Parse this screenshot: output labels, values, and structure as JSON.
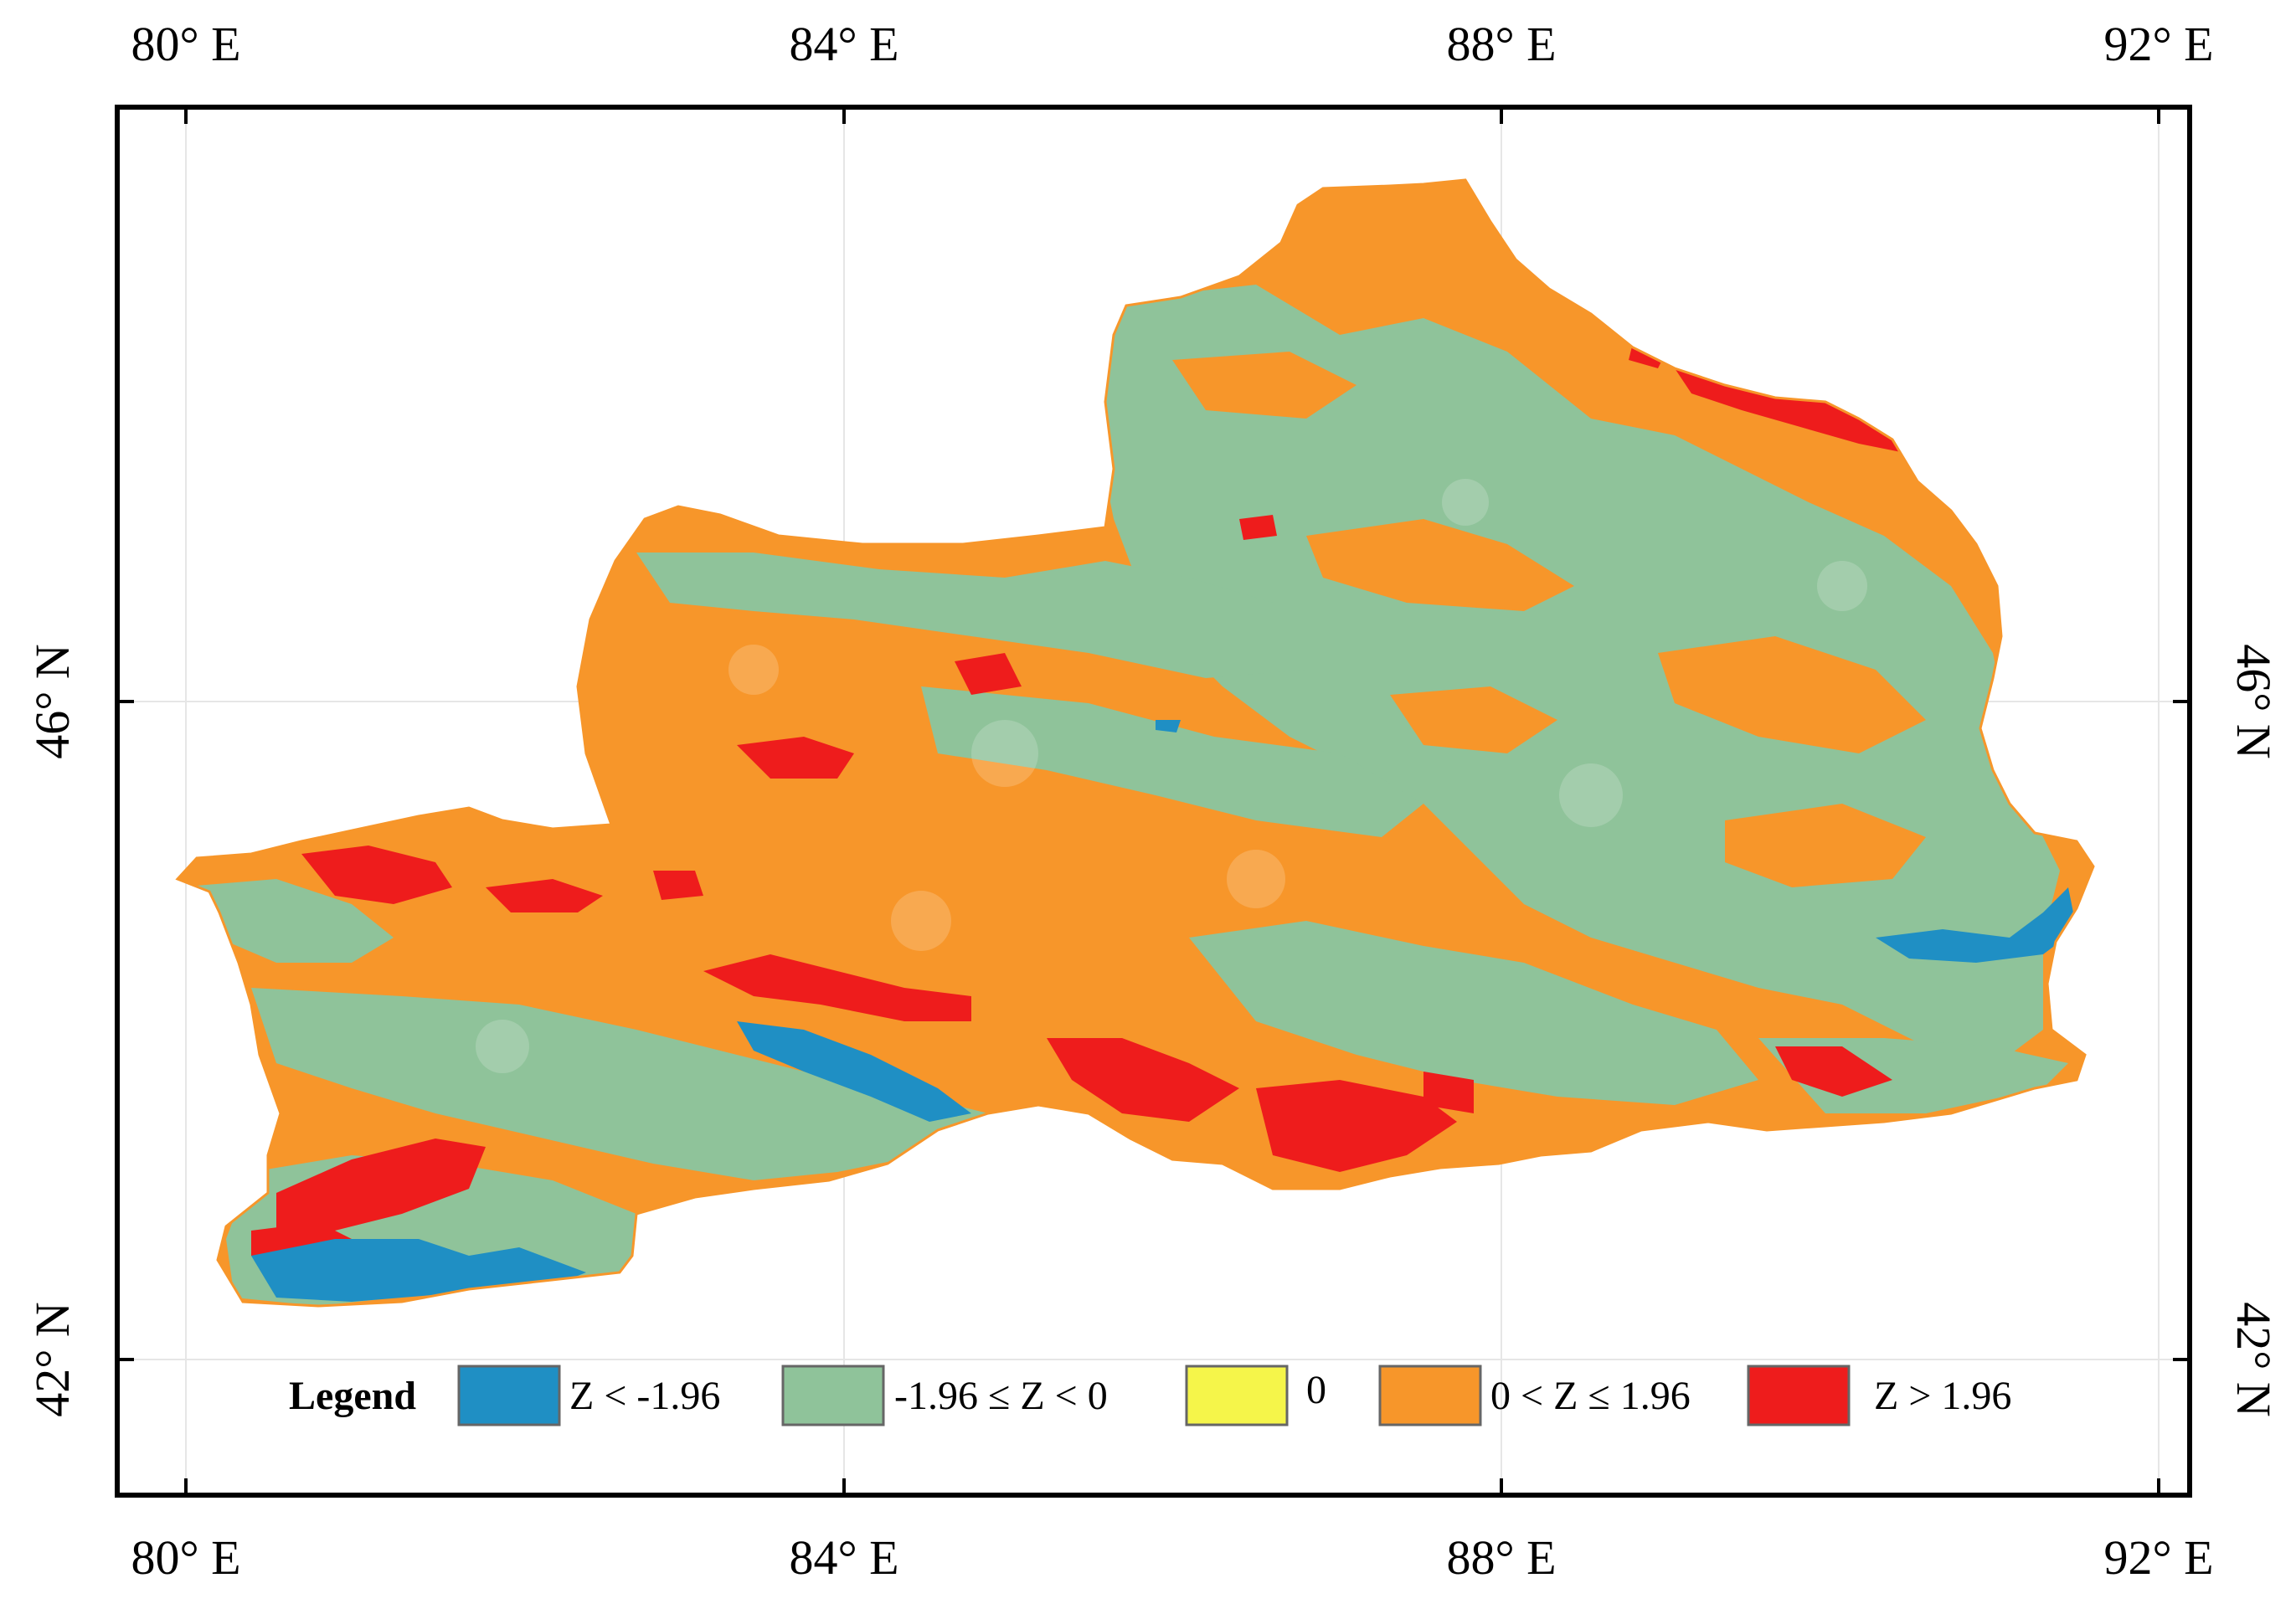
{
  "map": {
    "top_ticks": [
      "80° E",
      "84° E",
      "88° E",
      "92° E"
    ],
    "bottom_ticks": [
      "80° E",
      "84° E",
      "88° E",
      "92° E"
    ],
    "left_ticks": [
      "46° N",
      "42° N"
    ],
    "right_ticks": [
      "46° N",
      "42° N"
    ]
  },
  "legend": {
    "title": "Legend",
    "items": [
      {
        "label": "Z < -1.96",
        "color": "#1f8fc4"
      },
      {
        "label": "-1.96 ≤ Z < 0",
        "color": "#8fc39a"
      },
      {
        "label": "0",
        "color": "#f5f54a"
      },
      {
        "label": "0 < Z ≤ 1.96",
        "color": "#f7962a"
      },
      {
        "label": "Z > 1.96",
        "color": "#ee1c1c"
      }
    ]
  },
  "colors": {
    "frame": "#000000",
    "grid": "#e6e6e6",
    "region_orange": "#f7962a",
    "region_green": "#8fc39a",
    "region_red": "#ee1c1c",
    "region_blue": "#1f8fc4"
  }
}
